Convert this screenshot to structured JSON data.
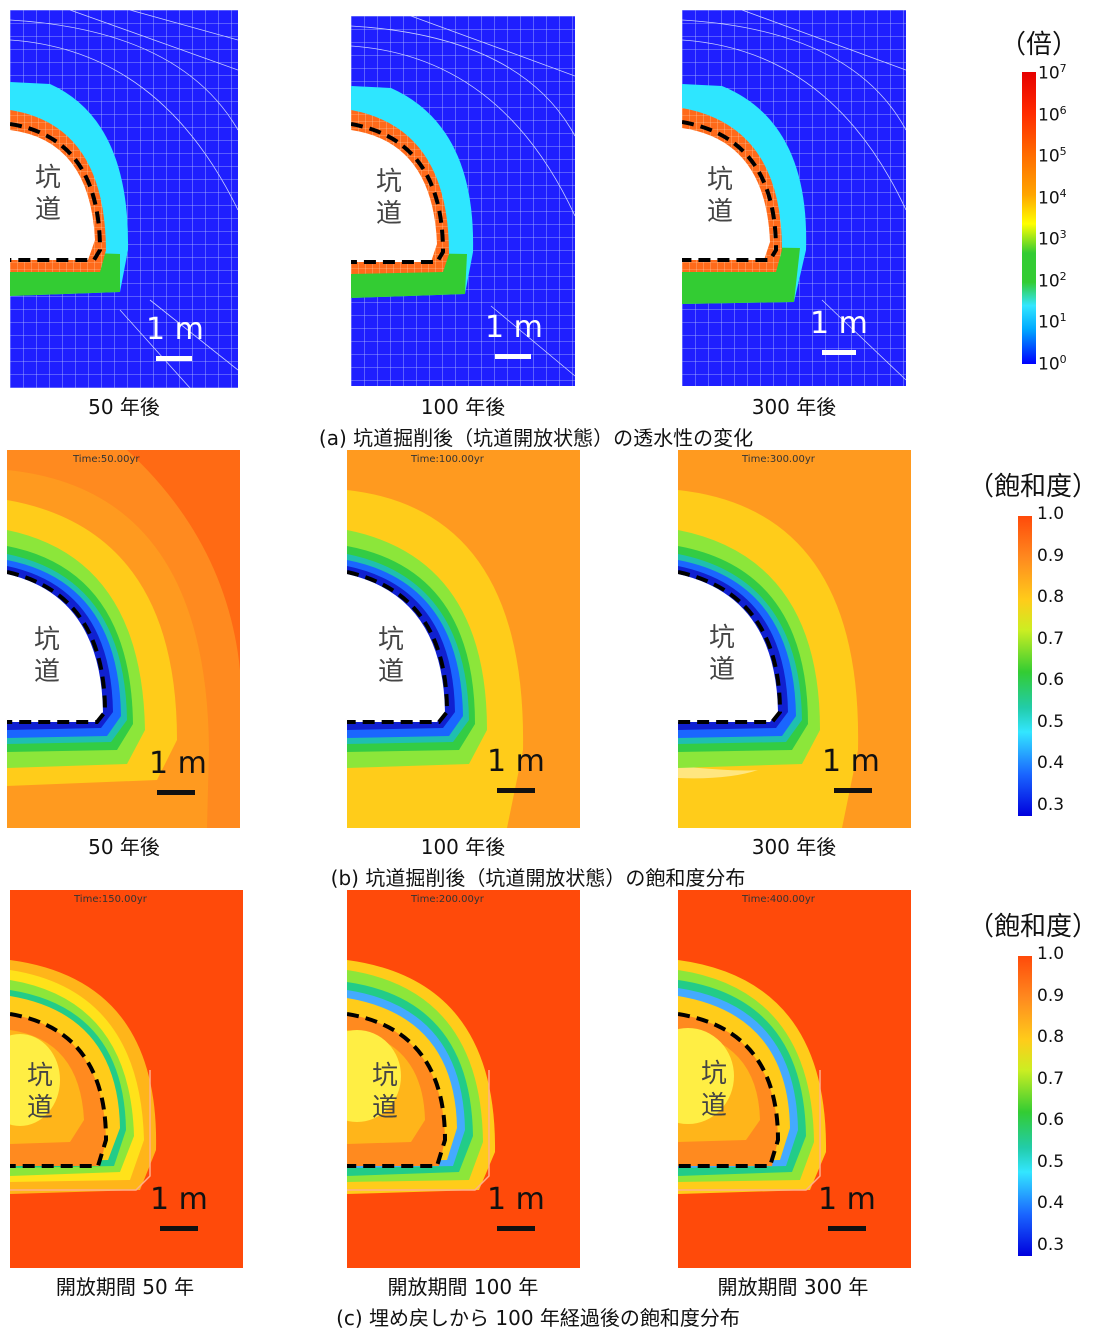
{
  "row_a": {
    "panels": [
      {
        "label": "50 年後",
        "scale": "1 m"
      },
      {
        "label": "100 年後",
        "scale": "1 m"
      },
      {
        "label": "300 年後",
        "scale": "1 m"
      }
    ],
    "caption": "(a)  坑道掘削後（坑道開放状態）の透水性の変化",
    "legend": {
      "title": "（倍）",
      "ticks": [
        {
          "base": "10",
          "exp": "7"
        },
        {
          "base": "10",
          "exp": "6"
        },
        {
          "base": "10",
          "exp": "5"
        },
        {
          "base": "10",
          "exp": "4"
        },
        {
          "base": "10",
          "exp": "3"
        },
        {
          "base": "10",
          "exp": "2"
        },
        {
          "base": "10",
          "exp": "1"
        },
        {
          "base": "10",
          "exp": "0"
        }
      ]
    }
  },
  "row_b": {
    "panels": [
      {
        "label": "50 年後",
        "time": "Time:50.00yr",
        "scale": "1 m"
      },
      {
        "label": "100 年後",
        "time": "Time:100.00yr",
        "scale": "1 m"
      },
      {
        "label": "300 年後",
        "time": "Time:300.00yr",
        "scale": "1 m"
      }
    ],
    "caption": "(b)  坑道掘削後（坑道開放状態）の飽和度分布",
    "legend": {
      "title": "（飽和度）",
      "ticks": [
        "1.0",
        "0.9",
        "0.8",
        "0.7",
        "0.6",
        "0.5",
        "0.4",
        "0.3"
      ]
    }
  },
  "row_c": {
    "panels": [
      {
        "label": "開放期間 50 年",
        "time": "Time:150.00yr",
        "scale": "1 m"
      },
      {
        "label": "開放期間 100 年",
        "time": "Time:200.00yr",
        "scale": "1 m"
      },
      {
        "label": "開放期間 300 年",
        "time": "Time:400.00yr",
        "scale": "1 m"
      }
    ],
    "caption": "(c)  埋め戻しから 100 年経過後の飽和度分布",
    "legend": {
      "title": "（飽和度）",
      "ticks": [
        "1.0",
        "0.9",
        "0.8",
        "0.7",
        "0.6",
        "0.5",
        "0.4",
        "0.3"
      ]
    }
  },
  "tunnel_text": {
    "line1": "坑",
    "line2": "道"
  },
  "colors": {
    "mesh_blue": "#1a1aff",
    "sat_orange": "#ff7a1a",
    "sat_red": "#ff4a0a"
  }
}
